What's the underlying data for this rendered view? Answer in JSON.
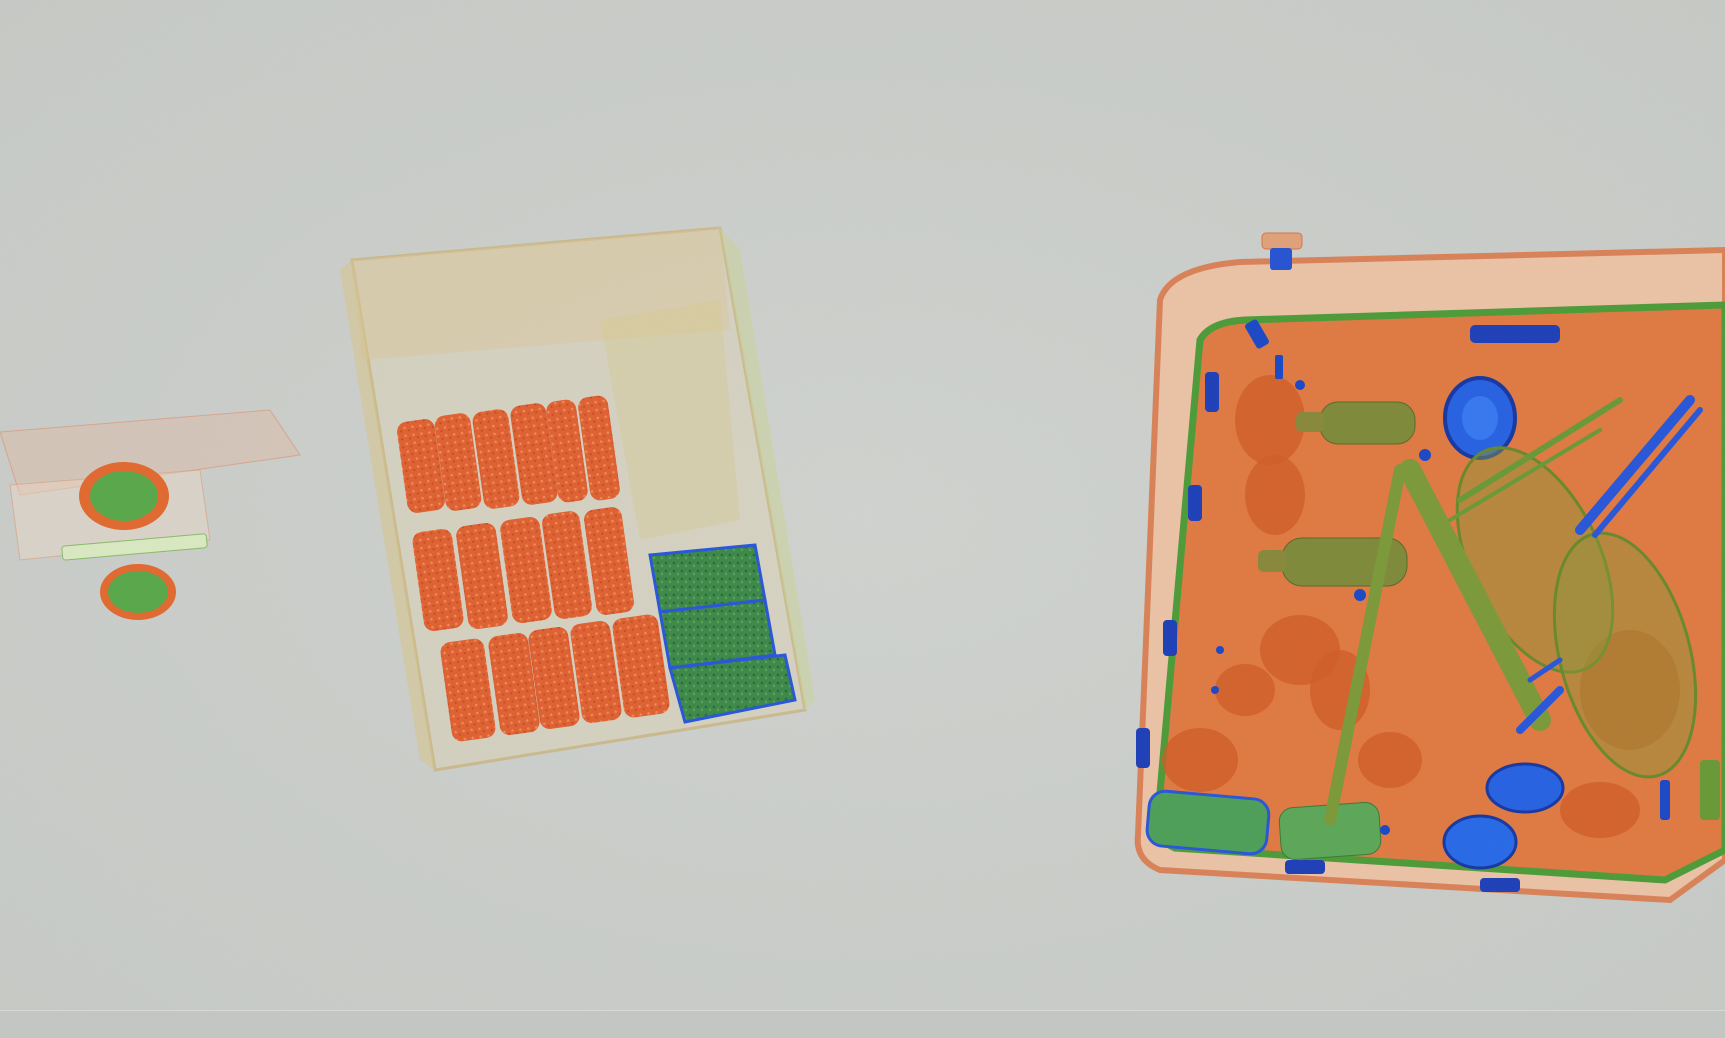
{
  "scan": {
    "background_color": "#c9ccc8",
    "material_colors": {
      "organic": "#e0632e",
      "mixed": "#6aa23a",
      "metal": "#2453d6",
      "dense_metal": "#1b2f9a"
    },
    "objects": [
      {
        "kind": "small-boxes"
      },
      {
        "kind": "open-carton"
      },
      {
        "kind": "suitcase"
      }
    ]
  }
}
